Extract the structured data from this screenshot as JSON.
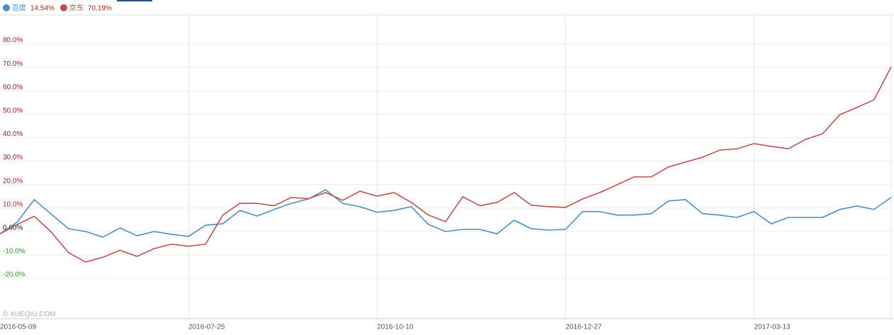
{
  "chart_data": {
    "type": "line",
    "watermark": "© XUEQIU.COM",
    "categories": [
      "2016-05-09",
      null,
      null,
      null,
      null,
      null,
      null,
      null,
      null,
      null,
      null,
      "2016-07-25",
      null,
      null,
      null,
      null,
      null,
      null,
      null,
      null,
      null,
      null,
      "2016-10-10",
      null,
      null,
      null,
      null,
      null,
      null,
      null,
      null,
      null,
      null,
      "2016-12-27",
      null,
      null,
      null,
      null,
      null,
      null,
      null,
      null,
      null,
      null,
      "2017-03-13",
      null,
      null,
      null,
      null,
      null,
      null,
      null,
      null
    ],
    "series": [
      {
        "name": "百度",
        "legend_value": "14.54%",
        "color": "#4a90c2",
        "values": [
          -1,
          4,
          13.6,
          7.3,
          1.2,
          0,
          -2.4,
          1.5,
          -1.8,
          0,
          -1.2,
          -2.1,
          2.7,
          3.3,
          9,
          6.6,
          9.4,
          12,
          13.9,
          17.8,
          12,
          10.6,
          8.2,
          9,
          10.6,
          3,
          0,
          0.9,
          0.9,
          -1,
          4.8,
          1.2,
          0.6,
          0.9,
          8.5,
          8.5,
          7,
          7,
          7.6,
          13,
          13.6,
          7.6,
          7,
          6,
          8.5,
          3.3,
          6,
          6,
          6,
          9.4,
          10.9,
          9.4,
          14.54
        ]
      },
      {
        "name": "京东",
        "legend_value": "70.19%",
        "color": "#c0504d",
        "values": [
          -1,
          3,
          6.5,
          -0.3,
          -9,
          -13,
          -11,
          -8,
          -10.6,
          -7.3,
          -5.4,
          -6.3,
          -5.4,
          7,
          12,
          12,
          11,
          14.5,
          14,
          16.6,
          13.3,
          17.2,
          15.1,
          16.6,
          12.4,
          7,
          4.2,
          14.8,
          11,
          12.4,
          16.6,
          11.2,
          10.6,
          10.3,
          13.9,
          16.6,
          19.9,
          23.3,
          23.3,
          27.5,
          29.6,
          31.7,
          34.7,
          35.3,
          37.5,
          36.3,
          35.3,
          39.3,
          41.7,
          49.8,
          52.9,
          56.2,
          70.19
        ]
      }
    ],
    "ylim": [
      -37.2,
      92.1
    ],
    "yticks": [
      {
        "value": -20,
        "label": "-20.0%"
      },
      {
        "value": -10,
        "label": "-10.0%"
      },
      {
        "value": 0,
        "label": "0.00%"
      },
      {
        "value": 10,
        "label": "10.0%"
      },
      {
        "value": 20,
        "label": "20.0%"
      },
      {
        "value": 30,
        "label": "30.0%"
      },
      {
        "value": 40,
        "label": "40.0%"
      },
      {
        "value": 50,
        "label": "50.0%"
      },
      {
        "value": 60,
        "label": "60.0%"
      },
      {
        "value": 70,
        "label": "70.0%"
      },
      {
        "value": 80,
        "label": "80.0%"
      }
    ],
    "grid": true
  }
}
